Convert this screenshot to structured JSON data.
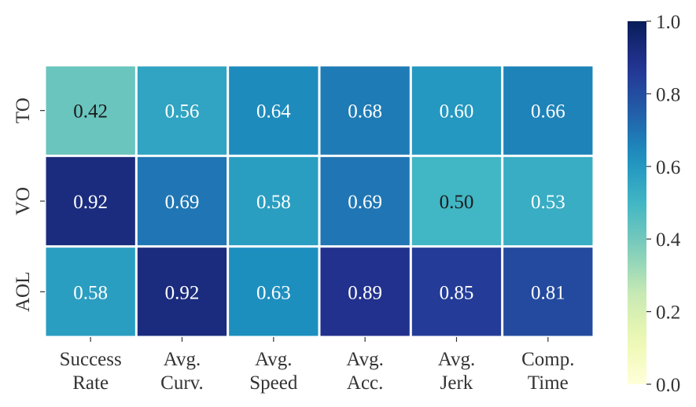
{
  "chart_data": {
    "type": "heatmap",
    "x_categories": [
      [
        "Success",
        "Rate"
      ],
      [
        "Avg.",
        "Curv."
      ],
      [
        "Avg.",
        "Speed"
      ],
      [
        "Avg.",
        "Acc."
      ],
      [
        "Avg.",
        "Jerk"
      ],
      [
        "Comp.",
        "Time"
      ]
    ],
    "y_categories": [
      "TO",
      "VO",
      "AOL"
    ],
    "values": [
      [
        0.42,
        0.56,
        0.64,
        0.68,
        0.6,
        0.66
      ],
      [
        0.92,
        0.69,
        0.58,
        0.69,
        0.5,
        0.53
      ],
      [
        0.58,
        0.92,
        0.63,
        0.89,
        0.85,
        0.81
      ]
    ],
    "value_labels": [
      [
        "0.42",
        "0.56",
        "0.64",
        "0.68",
        "0.60",
        "0.66"
      ],
      [
        "0.92",
        "0.69",
        "0.58",
        "0.69",
        "0.50",
        "0.53"
      ],
      [
        "0.58",
        "0.92",
        "0.63",
        "0.89",
        "0.85",
        "0.81"
      ]
    ],
    "colormap": "YlGnBu",
    "vmin": 0.0,
    "vmax": 1.0,
    "colorbar_ticks": [
      "0.0",
      "0.2",
      "0.4",
      "0.6",
      "0.8",
      "1.0"
    ],
    "colorbar_tick_values": [
      0.0,
      0.2,
      0.4,
      0.6,
      0.8,
      1.0
    ],
    "colorbar_placement": "right",
    "title": "",
    "xlabel": "",
    "ylabel": ""
  }
}
